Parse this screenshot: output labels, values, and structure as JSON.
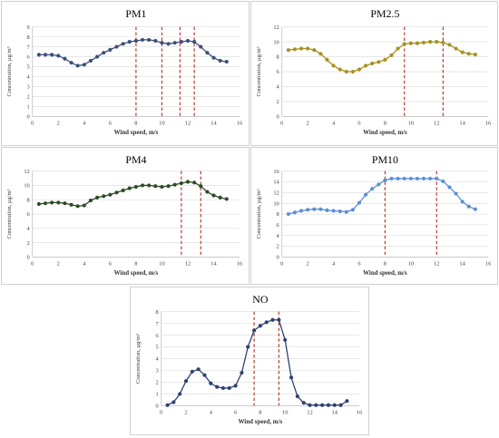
{
  "chart_data": [
    {
      "type": "line",
      "title": "PM1",
      "xlabel": "Wind speed, m/s",
      "ylabel": "Concentration, µg/m³",
      "xlim": [
        0,
        16
      ],
      "ylim": [
        0,
        9
      ],
      "xticks": [
        0,
        2,
        4,
        6,
        8,
        10,
        12,
        14,
        16
      ],
      "yticks": [
        0,
        1,
        2,
        3,
        4,
        5,
        6,
        7,
        8,
        9
      ],
      "grid": true,
      "color": "#3a4f7a",
      "vlines": [
        8,
        10,
        11.4,
        12.5
      ],
      "x": [
        0.5,
        1,
        1.5,
        2,
        2.5,
        3,
        3.5,
        4,
        4.5,
        5,
        5.5,
        6,
        6.5,
        7,
        7.5,
        8,
        8.5,
        9,
        9.5,
        10,
        10.5,
        11,
        11.5,
        12,
        12.5,
        13,
        13.5,
        14,
        14.5,
        15
      ],
      "y": [
        6.2,
        6.2,
        6.2,
        6.1,
        5.8,
        5.4,
        5.1,
        5.2,
        5.6,
        6.0,
        6.4,
        6.7,
        7.0,
        7.3,
        7.5,
        7.6,
        7.7,
        7.7,
        7.6,
        7.4,
        7.3,
        7.4,
        7.5,
        7.6,
        7.5,
        7.0,
        6.4,
        5.9,
        5.6,
        5.5
      ]
    },
    {
      "type": "line",
      "title": "PM2.5",
      "xlabel": "Wind speed, m/s",
      "ylabel": "Concentration, µg/m³",
      "xlim": [
        0,
        16
      ],
      "ylim": [
        0,
        12
      ],
      "xticks": [
        0,
        2,
        4,
        6,
        8,
        10,
        12,
        14,
        16
      ],
      "yticks": [
        0,
        2,
        4,
        6,
        8,
        10,
        12
      ],
      "grid": true,
      "color": "#a8901f",
      "vlines": [
        9.5,
        12.5
      ],
      "x": [
        0.5,
        1,
        1.5,
        2,
        2.5,
        3,
        3.5,
        4,
        4.5,
        5,
        5.5,
        6,
        6.5,
        7,
        7.5,
        8,
        8.5,
        9,
        9.5,
        10,
        10.5,
        11,
        11.5,
        12,
        12.5,
        13,
        13.5,
        14,
        14.5,
        15
      ],
      "y": [
        8.9,
        9.0,
        9.1,
        9.1,
        8.9,
        8.4,
        7.6,
        6.8,
        6.3,
        6.0,
        6.0,
        6.3,
        6.8,
        7.1,
        7.3,
        7.6,
        8.2,
        9.1,
        9.7,
        9.8,
        9.8,
        9.9,
        10.0,
        10.0,
        9.9,
        9.6,
        9.1,
        8.6,
        8.4,
        8.3
      ]
    },
    {
      "type": "line",
      "title": "PM4",
      "xlabel": "Wind speed, m/s",
      "ylabel": "Concentration, µg/m³",
      "xlim": [
        0,
        16
      ],
      "ylim": [
        0,
        12
      ],
      "xticks": [
        0,
        2,
        4,
        6,
        8,
        10,
        12,
        14,
        16
      ],
      "yticks": [
        0,
        2,
        4,
        6,
        8,
        10,
        12
      ],
      "grid": true,
      "color": "#2d4a26",
      "vlines": [
        11.5,
        13
      ],
      "x": [
        0.5,
        1,
        1.5,
        2,
        2.5,
        3,
        3.5,
        4,
        4.5,
        5,
        5.5,
        6,
        6.5,
        7,
        7.5,
        8,
        8.5,
        9,
        9.5,
        10,
        10.5,
        11,
        11.5,
        12,
        12.5,
        13,
        13.5,
        14,
        14.5,
        15
      ],
      "y": [
        7.4,
        7.5,
        7.6,
        7.6,
        7.5,
        7.3,
        7.1,
        7.2,
        7.9,
        8.3,
        8.5,
        8.7,
        9.0,
        9.3,
        9.6,
        9.8,
        10.0,
        10.0,
        9.9,
        9.8,
        9.9,
        10.1,
        10.3,
        10.5,
        10.4,
        9.9,
        9.1,
        8.6,
        8.3,
        8.1
      ]
    },
    {
      "type": "line",
      "title": "PM10",
      "xlabel": "Wind speed, m/s",
      "ylabel": "Concentration, µg/m³",
      "xlim": [
        0,
        16
      ],
      "ylim": [
        0,
        16
      ],
      "xticks": [
        0,
        2,
        4,
        6,
        8,
        10,
        12,
        14,
        16
      ],
      "yticks": [
        0,
        2,
        4,
        6,
        8,
        10,
        12,
        14,
        16
      ],
      "grid": true,
      "color": "#5b8fd6",
      "vlines": [
        8,
        12
      ],
      "x": [
        0.5,
        1,
        1.5,
        2,
        2.5,
        3,
        3.5,
        4,
        4.5,
        5,
        5.5,
        6,
        6.5,
        7,
        7.5,
        8,
        8.5,
        9,
        9.5,
        10,
        10.5,
        11,
        11.5,
        12,
        12.5,
        13,
        13.5,
        14,
        14.5,
        15
      ],
      "y": [
        8.0,
        8.3,
        8.6,
        8.8,
        8.9,
        8.9,
        8.7,
        8.6,
        8.5,
        8.4,
        8.8,
        10.1,
        11.6,
        12.7,
        13.5,
        14.3,
        14.6,
        14.6,
        14.6,
        14.6,
        14.6,
        14.6,
        14.6,
        14.6,
        14.1,
        13.0,
        11.8,
        10.3,
        9.4,
        8.9
      ]
    },
    {
      "type": "line",
      "title": "NO",
      "xlabel": "Wind speed, m/s",
      "ylabel": "Concentration, µg/m³",
      "xlim": [
        0,
        16
      ],
      "ylim": [
        0,
        8
      ],
      "xticks": [
        0,
        2,
        4,
        6,
        8,
        10,
        12,
        14,
        16
      ],
      "yticks": [
        0,
        1,
        2,
        3,
        4,
        5,
        6,
        7,
        8
      ],
      "grid": true,
      "color": "#2f4070",
      "vlines": [
        7.5,
        9.5
      ],
      "x": [
        0.5,
        1,
        1.5,
        2,
        2.5,
        3,
        3.5,
        4,
        4.5,
        5,
        5.5,
        6,
        6.5,
        7,
        7.5,
        8,
        8.5,
        9,
        9.5,
        10,
        10.5,
        11,
        11.5,
        12,
        12.5,
        13,
        13.5,
        14,
        14.5,
        15
      ],
      "y": [
        0.05,
        0.3,
        1.0,
        2.1,
        2.9,
        3.1,
        2.6,
        1.9,
        1.6,
        1.5,
        1.5,
        1.7,
        2.8,
        5.0,
        6.4,
        6.8,
        7.1,
        7.3,
        7.3,
        5.6,
        2.4,
        0.8,
        0.25,
        0.05,
        0.05,
        0.05,
        0.05,
        0.05,
        0.05,
        0.4
      ]
    }
  ]
}
